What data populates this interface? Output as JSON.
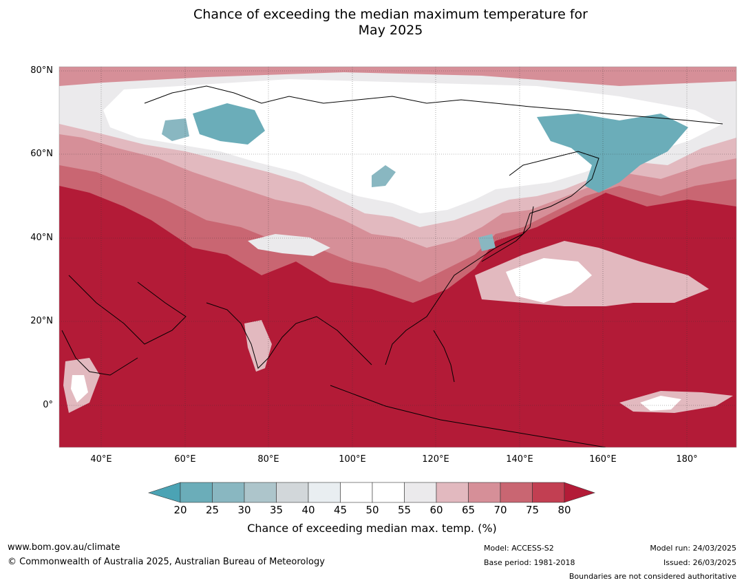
{
  "title": {
    "line1": "Chance of exceeding the median maximum temperature for",
    "line2": "May 2025"
  },
  "map": {
    "region": "Asia",
    "latitude_labels": [
      "80°N",
      "60°N",
      "40°N",
      "20°N",
      "0°"
    ],
    "longitude_labels": [
      "40°E",
      "60°E",
      "80°E",
      "100°E",
      "120°E",
      "140°E",
      "160°E",
      "180°"
    ],
    "colors": {
      "land_ocean_high": "#b31b37",
      "band_75_80": "#c23f52",
      "band_70_75": "#c96672",
      "band_65_70": "#d68f98",
      "band_60_65": "#e2b9bf",
      "band_55_60": "#ebeaec",
      "band_45_55": "#ffffff",
      "band_40_45": "#e9eef1",
      "band_35_40": "#d2d7da",
      "band_30_35": "#adc5cb",
      "band_25_30": "#89b7c1",
      "band_20_25": "#6badb9",
      "below_20": "#4ba3b4",
      "coastline": "#000000",
      "boundaries": "#808080"
    }
  },
  "colorbar": {
    "ticks": [
      "20",
      "25",
      "30",
      "35",
      "40",
      "45",
      "50",
      "55",
      "60",
      "65",
      "70",
      "75",
      "80"
    ],
    "label": "Chance of exceeding median max. temp. (%)",
    "colors": [
      "#4ba3b4",
      "#6badb9",
      "#89b7c1",
      "#adc5cb",
      "#d2d7da",
      "#e9eef1",
      "#ffffff",
      "#ffffff",
      "#ebeaec",
      "#e2b9bf",
      "#d68f98",
      "#c96672",
      "#c23f52",
      "#b31b37"
    ]
  },
  "footer": {
    "website": "www.bom.gov.au/climate",
    "copyright": "© Commonwealth of Australia 2025, Australian Bureau of Meteorology",
    "model": "Model: ACCESS-S2",
    "base_period": "Base period: 1981-2018",
    "model_run": "Model run: 24/03/2025",
    "issued": "Issued: 26/03/2025",
    "disclaimer": "Boundaries are not considered authoritative"
  }
}
